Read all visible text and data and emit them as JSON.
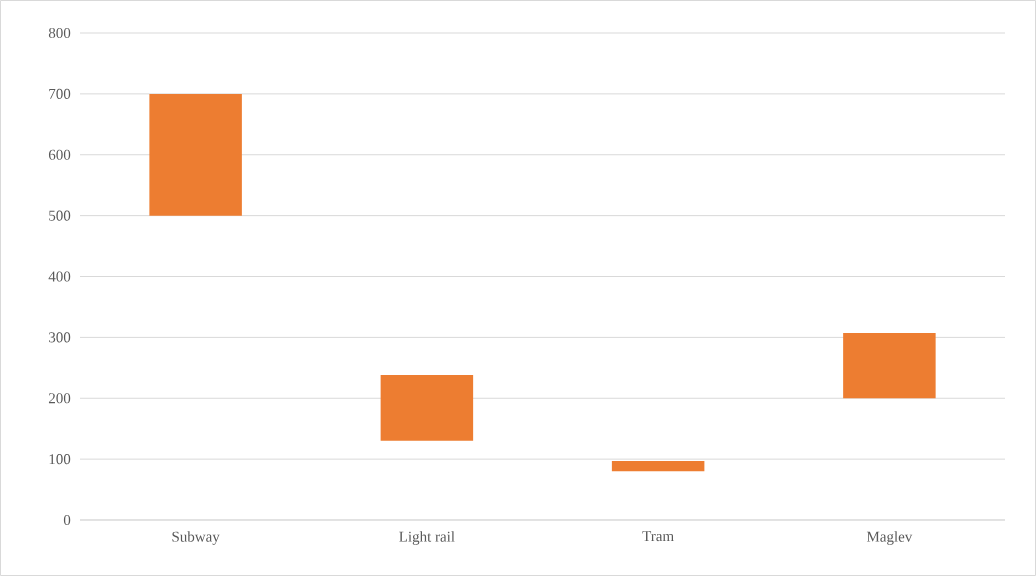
{
  "chart_data": {
    "type": "bar",
    "categories": [
      "Subway",
      "Light rail",
      "Tram",
      "Maglev"
    ],
    "base": [
      500,
      130,
      80,
      200
    ],
    "values": [
      200,
      108,
      17,
      107
    ],
    "color": "#ed7d31",
    "ylim": [
      0,
      800
    ],
    "yticks": [
      0,
      100,
      200,
      300,
      400,
      500,
      600,
      700,
      800
    ],
    "grid": "y"
  }
}
